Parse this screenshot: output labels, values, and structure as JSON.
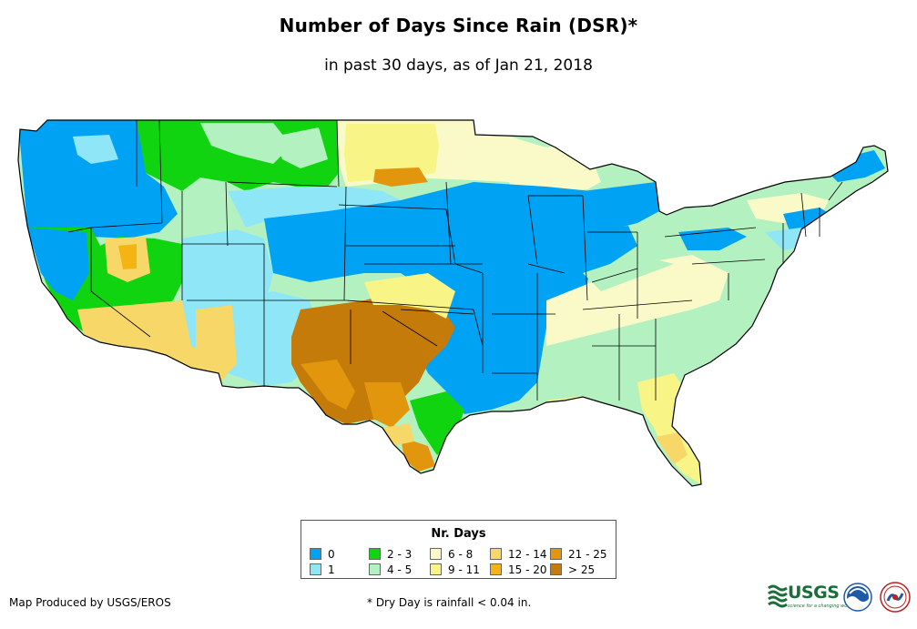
{
  "title": "Number of Days Since Rain (DSR)*",
  "subtitle": "in past 30 days, as of Jan 21, 2018",
  "legend": {
    "title": "Nr. Days",
    "items": [
      {
        "label": "0",
        "color": "#00a2f3"
      },
      {
        "label": "1",
        "color": "#8fe6f7"
      },
      {
        "label": "2 - 3",
        "color": "#11d411"
      },
      {
        "label": "4 - 5",
        "color": "#b3f2c0"
      },
      {
        "label": "6 - 8",
        "color": "#fafac8"
      },
      {
        "label": "9 - 11",
        "color": "#f8f486"
      },
      {
        "label": "12 - 14",
        "color": "#f7d768"
      },
      {
        "label": "15 - 20",
        "color": "#f4b514"
      },
      {
        "label": "21 - 25",
        "color": "#e2960e"
      },
      {
        "label": "> 25",
        "color": "#c47b0a"
      }
    ]
  },
  "credit": "Map Produced by USGS/EROS",
  "footnote": "* Dry Day is rainfall < 0.04 in.",
  "logos": {
    "usgs": "USGS",
    "usgs_tagline": "science for a changing world",
    "noaa": "noaa-logo",
    "nws": "nws-logo"
  }
}
